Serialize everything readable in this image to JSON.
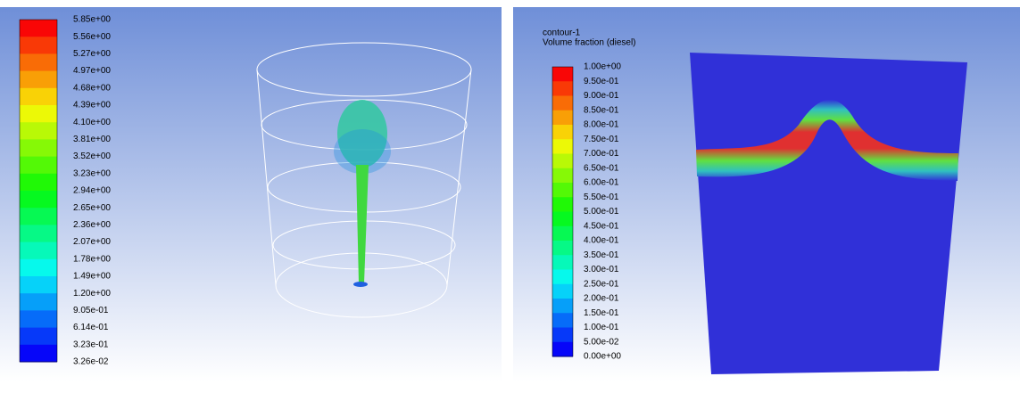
{
  "left_panel": {
    "colorbar": {
      "labels": [
        "5.85e+00",
        "5.56e+00",
        "5.27e+00",
        "4.97e+00",
        "4.68e+00",
        "4.39e+00",
        "4.10e+00",
        "3.81e+00",
        "3.52e+00",
        "3.23e+00",
        "2.94e+00",
        "2.65e+00",
        "2.36e+00",
        "2.07e+00",
        "1.78e+00",
        "1.49e+00",
        "1.20e+00",
        "9.05e-01",
        "6.14e-01",
        "3.23e-01",
        "3.26e-02"
      ]
    }
  },
  "right_panel": {
    "title": [
      "contour-1",
      "Volume fraction (diesel)"
    ],
    "colorbar": {
      "labels": [
        "1.00e+00",
        "9.50e-01",
        "9.00e-01",
        "8.50e-01",
        "8.00e-01",
        "7.50e-01",
        "7.00e-01",
        "6.50e-01",
        "6.00e-01",
        "5.50e-01",
        "5.00e-01",
        "4.50e-01",
        "4.00e-01",
        "3.50e-01",
        "3.00e-01",
        "2.50e-01",
        "2.00e-01",
        "1.50e-01",
        "1.00e-01",
        "5.00e-02",
        "0.00e+00"
      ]
    }
  }
}
